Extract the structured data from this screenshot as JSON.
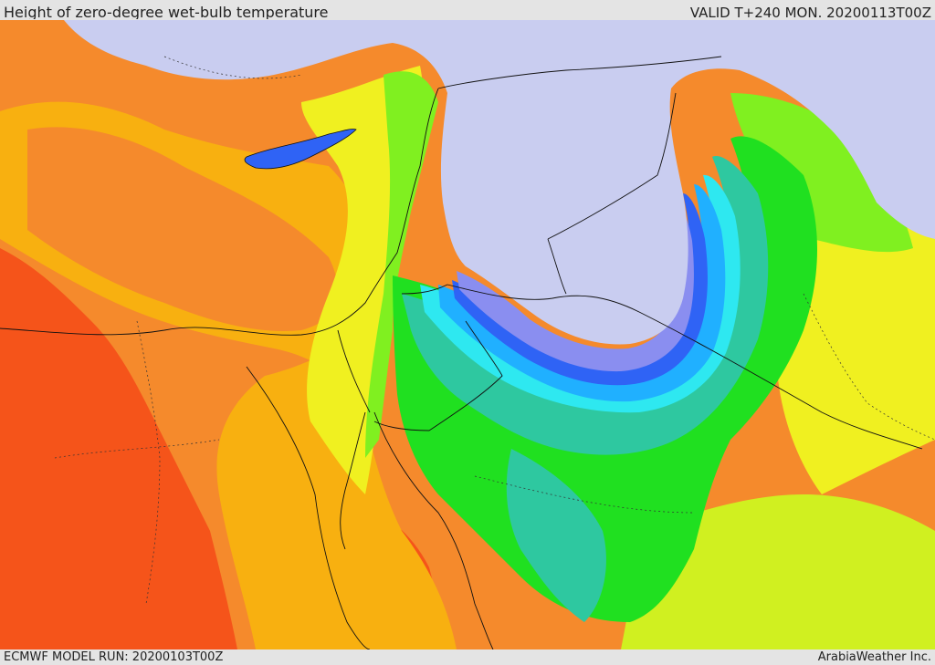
{
  "header": {
    "title": "Height of zero-degree wet-bulb temperature",
    "valid": "VALID T+240 MON. 20200113T00Z"
  },
  "footer": {
    "model_run": "ECMWF MODEL RUN: 20200103T00Z",
    "credit": "ArabiaWeather Inc."
  },
  "colors": {
    "no_data_sea_land": "#c9cdf0",
    "violet": "#8a8ef0",
    "deep_blue": "#2f63f5",
    "sky_blue": "#20b0ff",
    "cyan": "#2ee8f0",
    "teal": "#2ec8a0",
    "green": "#20e020",
    "light_green": "#80f020",
    "yellow_green": "#d0f020",
    "yellow": "#f0f020",
    "gold": "#f8b010",
    "orange": "#f58a2c",
    "red_orange": "#f5541a"
  },
  "icons": [
    "country-border-icon",
    "coastline-icon"
  ]
}
